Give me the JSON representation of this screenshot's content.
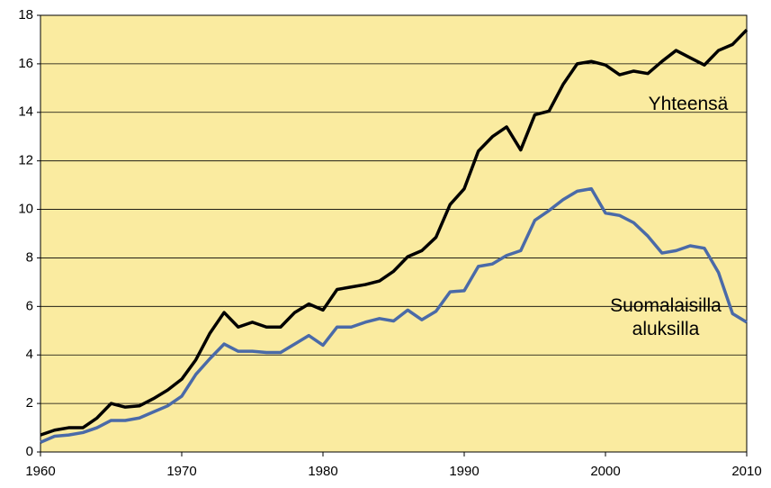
{
  "chart_data": {
    "type": "line",
    "x": [
      1960,
      1961,
      1962,
      1963,
      1964,
      1965,
      1966,
      1967,
      1968,
      1969,
      1970,
      1971,
      1972,
      1973,
      1974,
      1975,
      1976,
      1977,
      1978,
      1979,
      1980,
      1981,
      1982,
      1983,
      1984,
      1985,
      1986,
      1987,
      1988,
      1989,
      1990,
      1991,
      1992,
      1993,
      1994,
      1995,
      1996,
      1997,
      1998,
      1999,
      2000,
      2001,
      2002,
      2003,
      2004,
      2005,
      2006,
      2007,
      2008,
      2009,
      2010
    ],
    "series": [
      {
        "name": "Yhteensä",
        "color": "#000000",
        "values": [
          0.7,
          0.9,
          1.0,
          1.0,
          1.4,
          2.0,
          1.85,
          1.9,
          2.2,
          2.55,
          3.0,
          3.8,
          4.9,
          5.75,
          5.15,
          5.35,
          5.15,
          5.15,
          5.75,
          6.1,
          5.85,
          6.7,
          6.8,
          6.9,
          7.05,
          7.45,
          8.05,
          8.3,
          8.85,
          10.2,
          10.85,
          12.4,
          13.0,
          13.4,
          12.45,
          13.9,
          14.05,
          15.15,
          16.0,
          16.1,
          15.95,
          15.55,
          15.7,
          15.6,
          16.1,
          16.55,
          16.25,
          15.95,
          16.55,
          16.8,
          17.4
        ]
      },
      {
        "name": "Suomalaisilla aluksilla",
        "color": "#4a6aa8",
        "values": [
          0.4,
          0.65,
          0.7,
          0.8,
          1.0,
          1.3,
          1.3,
          1.4,
          1.65,
          1.9,
          2.3,
          3.2,
          3.85,
          4.45,
          4.15,
          4.15,
          4.1,
          4.1,
          4.45,
          4.8,
          4.4,
          5.15,
          5.15,
          5.35,
          5.5,
          5.4,
          5.85,
          5.45,
          5.8,
          6.6,
          6.65,
          7.65,
          7.75,
          8.1,
          8.3,
          9.55,
          9.95,
          10.4,
          10.75,
          10.85,
          9.85,
          9.75,
          9.45,
          8.9,
          8.2,
          8.3,
          8.5,
          8.4,
          7.4,
          5.7,
          5.35
        ]
      }
    ],
    "xlim": [
      1960,
      2010
    ],
    "xticks": [
      1960,
      1970,
      1980,
      1990,
      2000,
      2010
    ],
    "ylim": [
      0,
      18
    ],
    "yticks": [
      0,
      2,
      4,
      6,
      8,
      10,
      12,
      14,
      16,
      18
    ],
    "grid": true,
    "background": "#faeba0"
  }
}
